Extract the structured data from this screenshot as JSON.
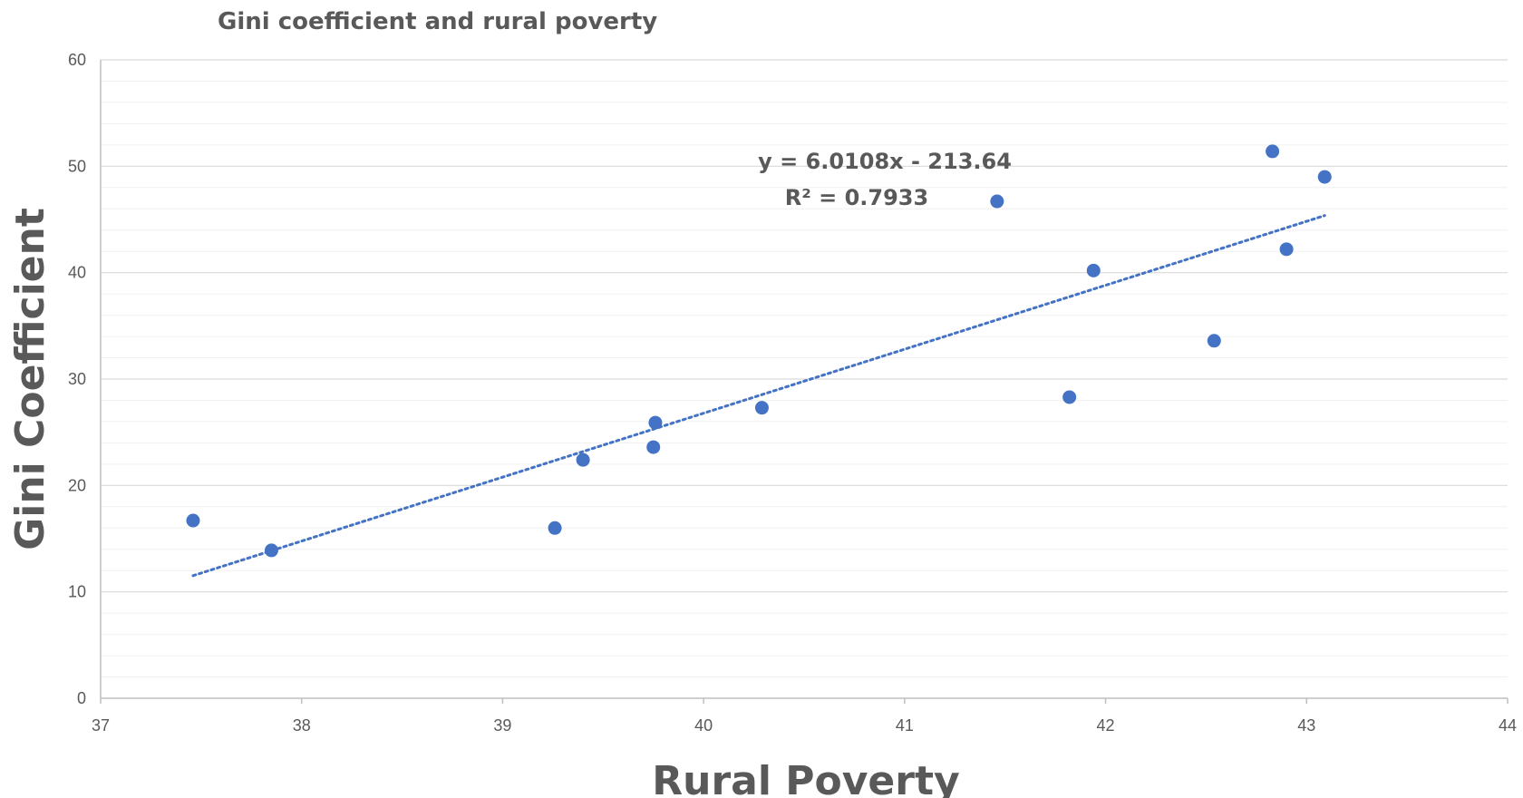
{
  "chart_data": {
    "type": "scatter",
    "title": "Gini coefficient and rural poverty",
    "xlabel": "Rural Poverty",
    "ylabel": "Gini Coefficient",
    "xlim": [
      37,
      44
    ],
    "ylim": [
      0,
      60
    ],
    "x_ticks": [
      "37",
      "38",
      "39",
      "40",
      "41",
      "42",
      "43",
      "44"
    ],
    "y_ticks": [
      "0",
      "10",
      "20",
      "30",
      "40",
      "50",
      "60"
    ],
    "grid": true,
    "legend": "none",
    "marker_color": "#4472C4",
    "trendline": {
      "type": "linear",
      "slope": 6.0108,
      "intercept": -213.64,
      "x_range": [
        37.46,
        43.09
      ],
      "color": "#4472C4",
      "style": "dotted",
      "equation_label": "y = 6.0108x - 213.64",
      "r2_label": "R² = 0.7933"
    },
    "points": [
      {
        "x": 37.46,
        "y": 16.7
      },
      {
        "x": 37.85,
        "y": 13.9
      },
      {
        "x": 39.26,
        "y": 16.0
      },
      {
        "x": 39.4,
        "y": 22.4
      },
      {
        "x": 39.75,
        "y": 23.6
      },
      {
        "x": 39.76,
        "y": 25.9
      },
      {
        "x": 40.29,
        "y": 27.3
      },
      {
        "x": 41.46,
        "y": 46.7
      },
      {
        "x": 41.82,
        "y": 28.3
      },
      {
        "x": 41.94,
        "y": 40.2
      },
      {
        "x": 42.54,
        "y": 33.6
      },
      {
        "x": 42.83,
        "y": 51.4
      },
      {
        "x": 42.9,
        "y": 42.2
      },
      {
        "x": 43.09,
        "y": 49.0
      }
    ]
  }
}
